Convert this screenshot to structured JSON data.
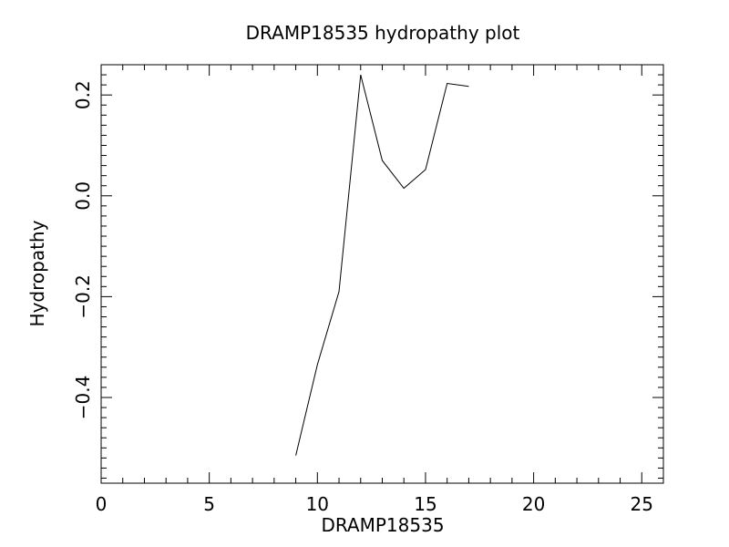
{
  "chart_data": {
    "type": "line",
    "title": "DRAMP18535 hydropathy plot",
    "xlabel": "DRAMP18535",
    "ylabel": "Hydropathy",
    "xlim": [
      0,
      26
    ],
    "ylim": [
      -0.57,
      0.26
    ],
    "x_ticks": [
      0,
      5,
      10,
      15,
      20,
      25
    ],
    "x_tick_labels": [
      "0",
      "5",
      "10",
      "15",
      "20",
      "25"
    ],
    "y_ticks": [
      -0.4,
      -0.2,
      0.0,
      0.2
    ],
    "y_tick_labels": [
      "−0.4",
      "−0.2",
      "0.0",
      "0.2"
    ],
    "grid": false,
    "series": [
      {
        "x": [
          9,
          10,
          11,
          12,
          13,
          14,
          15,
          16,
          17
        ],
        "y": [
          -0.515,
          -0.335,
          -0.19,
          0.24,
          0.07,
          0.015,
          0.052,
          0.223,
          0.217
        ]
      }
    ]
  }
}
